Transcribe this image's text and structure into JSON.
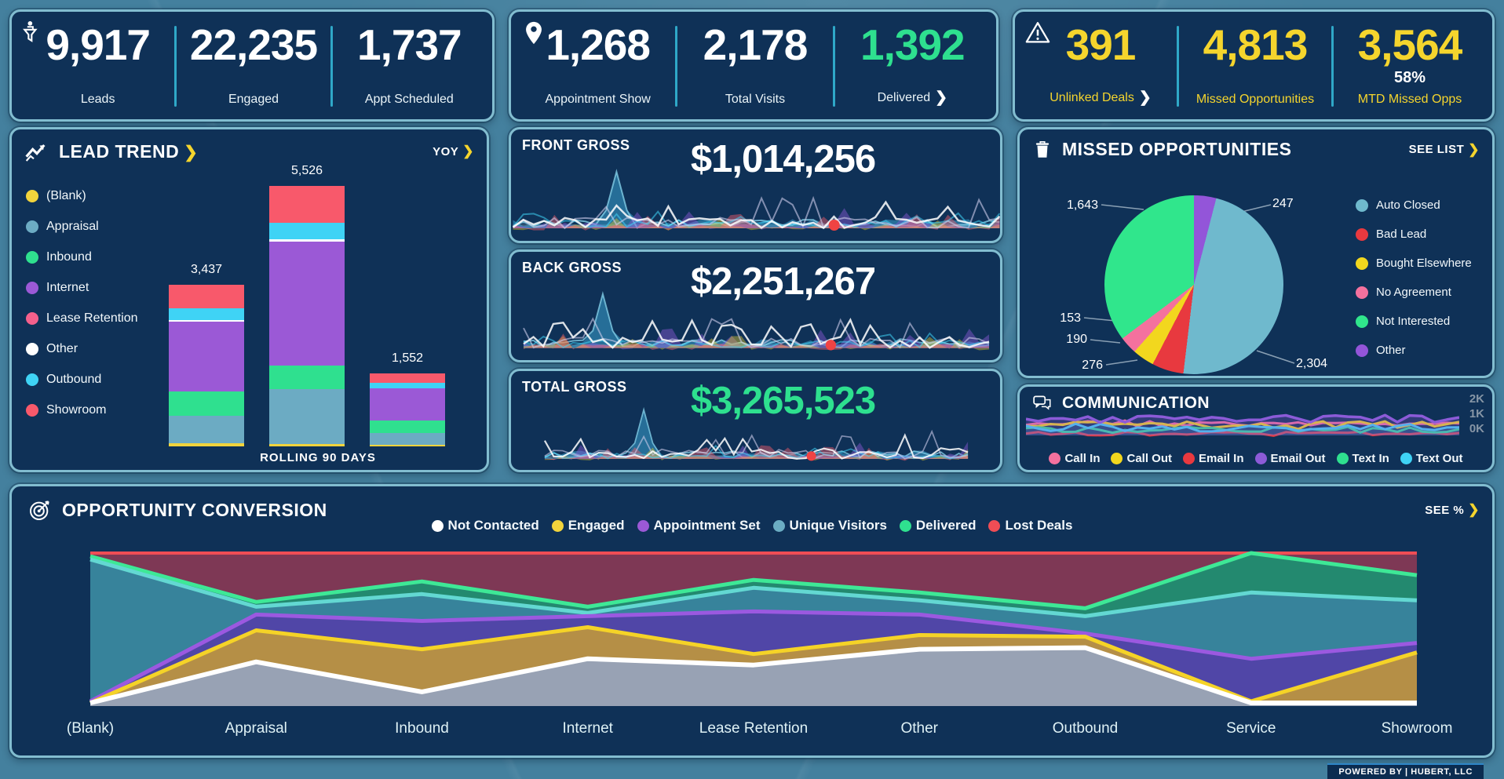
{
  "kpi_cards": [
    {
      "icon": "funnel-person",
      "metrics": [
        {
          "value": "9,917",
          "label": "Leads"
        },
        {
          "value": "22,235",
          "label": "Engaged"
        },
        {
          "value": "1,737",
          "label": "Appt Scheduled"
        }
      ]
    },
    {
      "icon": "location-pin",
      "metrics": [
        {
          "value": "1,268",
          "label": "Appointment Show"
        },
        {
          "value": "2,178",
          "label": "Total Visits"
        },
        {
          "value": "1,392",
          "label": "Delivered",
          "value_color": "#2ee08f",
          "chevron": "white"
        }
      ]
    },
    {
      "icon": "warning-triangle",
      "number_color": "#f5d52d",
      "label_color": "#f5d52d",
      "metrics": [
        {
          "value": "391",
          "label": "Unlinked Deals",
          "chevron": "white"
        },
        {
          "value": "4,813",
          "label": "Missed Opportunities"
        },
        {
          "value": "3,564",
          "sub_value": "58%",
          "label": "MTD Missed Opps"
        }
      ]
    }
  ],
  "lead_trend": {
    "title": "LEAD TREND",
    "yoy_label": "YOY",
    "footer": "ROLLING 90 DAYS",
    "legend": [
      {
        "label": "(Blank)",
        "color": "#f2d43c"
      },
      {
        "label": "Appraisal",
        "color": "#6cabc3"
      },
      {
        "label": "Inbound",
        "color": "#2fe08f"
      },
      {
        "label": "Internet",
        "color": "#9b59d6"
      },
      {
        "label": "Lease Retention",
        "color": "#f4608c"
      },
      {
        "label": "Other",
        "color": "#ffffff"
      },
      {
        "label": "Outbound",
        "color": "#3fd3f5"
      },
      {
        "label": "Showroom",
        "color": "#f8596b"
      }
    ]
  },
  "gross_cards": [
    {
      "title": "FRONT GROSS",
      "value": "$1,014,256",
      "value_color": "#ffffff",
      "dot_x": 0.66
    },
    {
      "title": "BACK GROSS",
      "value": "$2,251,267",
      "value_color": "#ffffff",
      "dot_x": 0.66
    },
    {
      "title": "TOTAL GROSS",
      "value": "$3,265,523",
      "value_color": "#2ee08f",
      "dot_x": 0.63
    }
  ],
  "missed_opportunities": {
    "title": "MISSED OPPORTUNITIES",
    "action": "SEE LIST"
  },
  "communication": {
    "title": "COMMUNICATION",
    "y_ticks": [
      "2K",
      "1K",
      "0K"
    ],
    "legend": [
      {
        "label": "Call In",
        "color": "#f4719e"
      },
      {
        "label": "Call Out",
        "color": "#f2d71e"
      },
      {
        "label": "Email In",
        "color": "#e8393f"
      },
      {
        "label": "Email Out",
        "color": "#8c5bd8"
      },
      {
        "label": "Text In",
        "color": "#2fe08f"
      },
      {
        "label": "Text Out",
        "color": "#3fd3f5"
      }
    ]
  },
  "conversion": {
    "title": "OPPORTUNITY CONVERSION",
    "action": "SEE %",
    "legend": [
      {
        "label": "Not Contacted",
        "color": "#ffffff"
      },
      {
        "label": "Engaged",
        "color": "#f2d43c"
      },
      {
        "label": "Appointment Set",
        "color": "#9b59d6"
      },
      {
        "label": "Unique Visitors",
        "color": "#6badc3"
      },
      {
        "label": "Delivered",
        "color": "#2fe08f"
      },
      {
        "label": "Lost Deals",
        "color": "#ef4d55"
      }
    ]
  },
  "footer": {
    "text": "POWERED BY | HUBERT, LLC"
  },
  "chart_data": [
    {
      "id": "lead_trend",
      "type": "bar",
      "stacked": true,
      "title": "LEAD TREND",
      "subtitle": "ROLLING 90 DAYS",
      "categories": [
        "",
        "",
        ""
      ],
      "totals": [
        3437,
        5526,
        1552
      ],
      "total_labels": [
        "3,437",
        "5,526",
        "1,552"
      ],
      "values_estimated": true,
      "series": [
        {
          "name": "(Blank)",
          "color": "#f2d43c",
          "values": [
            69,
            55,
            31
          ]
        },
        {
          "name": "Appraisal",
          "color": "#6cabc3",
          "values": [
            584,
            1160,
            248
          ]
        },
        {
          "name": "Inbound",
          "color": "#2fe08f",
          "values": [
            516,
            497,
            279
          ]
        },
        {
          "name": "Internet",
          "color": "#9b59d6",
          "values": [
            1478,
            2625,
            667
          ]
        },
        {
          "name": "Other",
          "color": "#ffffff",
          "values": [
            34,
            55,
            8
          ]
        },
        {
          "name": "Outbound",
          "color": "#3fd3f5",
          "values": [
            241,
            359,
            109
          ]
        },
        {
          "name": "Showroom",
          "color": "#f8596b",
          "values": [
            515,
            775,
            210
          ]
        }
      ],
      "legend_position": "left",
      "grid": false
    },
    {
      "id": "missed_opportunities",
      "type": "pie",
      "title": "MISSED OPPORTUNITIES",
      "total": 4813,
      "slices": [
        {
          "label": "Auto Closed",
          "value": 2304,
          "display": "2,304",
          "color": "#6fb9cd"
        },
        {
          "label": "Bad Lead",
          "value": 276,
          "display": "276",
          "color": "#e8393f"
        },
        {
          "label": "Bought Elsewhere",
          "value": 190,
          "display": "190",
          "color": "#f2d71e"
        },
        {
          "label": "No Agreement",
          "value": 153,
          "display": "153",
          "color": "#f4719e"
        },
        {
          "label": "Not Interested",
          "value": 1643,
          "display": "1,643",
          "color": "#30e68c"
        },
        {
          "label": "Other",
          "value": 247,
          "display": "247",
          "color": "#9355d9"
        }
      ],
      "legend_position": "right"
    },
    {
      "id": "communication",
      "type": "line",
      "title": "COMMUNICATION",
      "ylim": [
        0,
        2000
      ],
      "y_tick_labels": [
        "2K",
        "1K",
        "0K"
      ],
      "values_estimated": true,
      "series": [
        {
          "name": "Call In",
          "color": "#f4719e",
          "approx_level": 600
        },
        {
          "name": "Call Out",
          "color": "#f2d71e",
          "approx_level": 650
        },
        {
          "name": "Email In",
          "color": "#e8393f",
          "approx_level": 150
        },
        {
          "name": "Email Out",
          "color": "#8c5bd8",
          "approx_level": 1150
        },
        {
          "name": "Text In",
          "color": "#2fe08f",
          "approx_level": 400
        },
        {
          "name": "Text Out",
          "color": "#3fd3f5",
          "approx_level": 550
        }
      ]
    },
    {
      "id": "opportunity_conversion",
      "type": "area",
      "title": "OPPORTUNITY CONVERSION",
      "categories": [
        "(Blank)",
        "Appraisal",
        "Inbound",
        "Internet",
        "Lease Retention",
        "Other",
        "Outbound",
        "Service",
        "Showroom"
      ],
      "values_estimated": true,
      "note": "values are estimated fractions of plot height (no y axis shown)",
      "series": [
        {
          "name": "Lost Deals",
          "line": "#ef4d55",
          "fill": "rgba(196,62,84,0.62)",
          "width": 4,
          "values": [
            0.97,
            0.97,
            0.97,
            0.97,
            0.97,
            0.97,
            0.97,
            0.97,
            0.97
          ]
        },
        {
          "name": "Delivered",
          "line": "#3ee896",
          "fill": "rgba(23,148,115,0.88)",
          "width": 5,
          "values": [
            0.95,
            0.66,
            0.79,
            0.63,
            0.8,
            0.72,
            0.62,
            0.97,
            0.83
          ]
        },
        {
          "name": "Unique Visitors",
          "line": "#63d8d2",
          "fill": "rgba(62,130,168,0.78)",
          "width": 5,
          "values": [
            0.93,
            0.63,
            0.71,
            0.59,
            0.75,
            0.67,
            0.57,
            0.72,
            0.67
          ]
        },
        {
          "name": "Appointment Set",
          "line": "#9b59e0",
          "fill": "rgba(84,62,168,0.88)",
          "width": 5,
          "values": [
            0.03,
            0.58,
            0.54,
            0.57,
            0.6,
            0.58,
            0.46,
            0.3,
            0.4
          ]
        },
        {
          "name": "Engaged",
          "line": "#f5d327",
          "fill": "rgba(186,148,64,0.95)",
          "width": 5,
          "values": [
            0.02,
            0.48,
            0.36,
            0.5,
            0.33,
            0.45,
            0.44,
            0.03,
            0.34
          ]
        },
        {
          "name": "Not Contacted",
          "line": "#ffffff",
          "fill": "rgba(150,164,190,0.92)",
          "width": 6,
          "values": [
            0.02,
            0.28,
            0.09,
            0.3,
            0.26,
            0.36,
            0.37,
            0.02,
            0.02
          ]
        }
      ]
    }
  ]
}
